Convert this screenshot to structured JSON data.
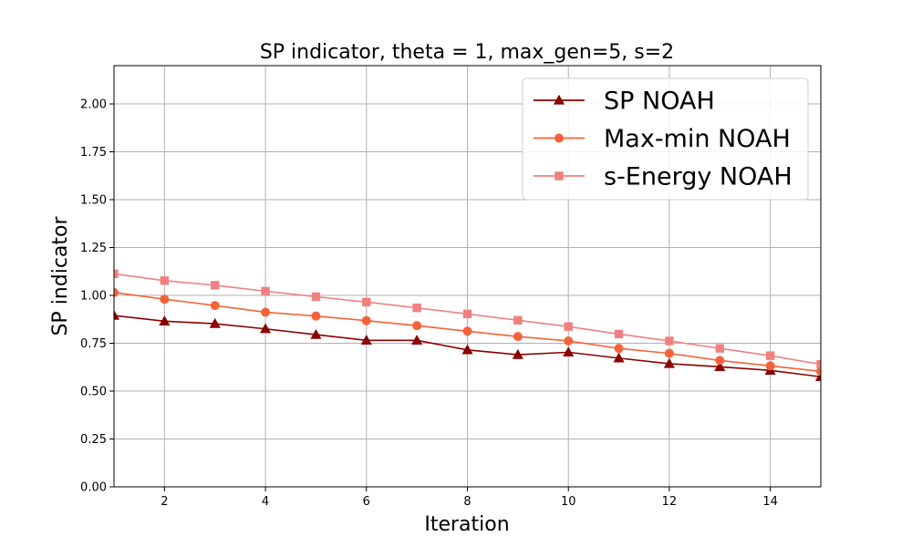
{
  "chart_data": {
    "type": "line",
    "title": "SP indicator, theta = 1, max_gen=5, s=2",
    "xlabel": "Iteration",
    "ylabel": "SP indicator",
    "xlim": [
      1,
      15
    ],
    "ylim": [
      0,
      2.2
    ],
    "xticks": [
      2,
      4,
      6,
      8,
      10,
      12,
      14
    ],
    "yticks": [
      0.0,
      0.25,
      0.5,
      0.75,
      1.0,
      1.25,
      1.5,
      1.75,
      2.0
    ],
    "ytick_labels": [
      "0.00",
      "0.25",
      "0.50",
      "0.75",
      "1.00",
      "1.25",
      "1.50",
      "1.75",
      "2.00"
    ],
    "grid": true,
    "legend_position": "top-right",
    "x": [
      1,
      2,
      3,
      4,
      5,
      6,
      7,
      8,
      9,
      10,
      11,
      12,
      13,
      14,
      15
    ],
    "series": [
      {
        "name": "SP NOAH",
        "color": "#8b0000",
        "marker": "triangle",
        "values": [
          0.895,
          0.865,
          0.852,
          0.825,
          0.795,
          0.765,
          0.765,
          0.715,
          0.69,
          0.703,
          0.672,
          0.643,
          0.627,
          0.608,
          0.575
        ]
      },
      {
        "name": "Max-min NOAH",
        "color": "#f4623a",
        "marker": "circle",
        "values": [
          1.015,
          0.98,
          0.947,
          0.912,
          0.892,
          0.868,
          0.842,
          0.813,
          0.785,
          0.762,
          0.723,
          0.697,
          0.66,
          0.632,
          0.603
        ]
      },
      {
        "name": "s-Energy NOAH",
        "color": "#f08080",
        "marker": "square",
        "values": [
          1.113,
          1.077,
          1.053,
          1.022,
          0.993,
          0.965,
          0.935,
          0.903,
          0.87,
          0.837,
          0.798,
          0.762,
          0.723,
          0.685,
          0.64
        ]
      }
    ]
  }
}
